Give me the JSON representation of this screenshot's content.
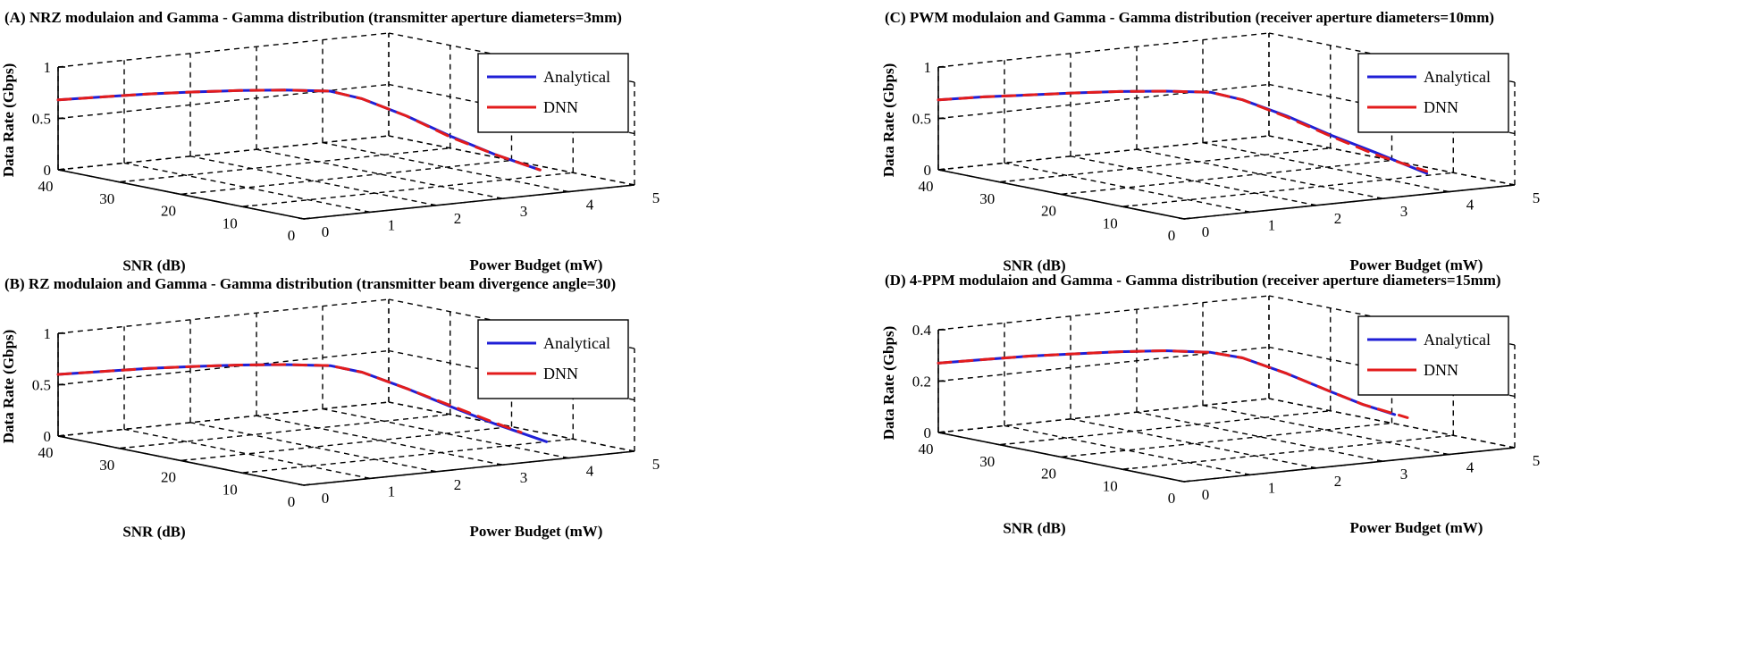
{
  "colors": {
    "analytical": "#1f1fd6",
    "dnn": "#e31c1c",
    "axes": "#000000"
  },
  "chart_data": [
    {
      "id": "A",
      "type": "line",
      "title": "(A) NRZ modulaion and Gamma - Gamma distribution (transmitter aperture diameters=3mm)",
      "xlabel": "Power Budget (mW)",
      "ylabel": "SNR (dB)",
      "zlabel": "Data Rate (Gbps)",
      "xlim": [
        0,
        5
      ],
      "ylim": [
        0,
        40
      ],
      "zlim": [
        0,
        1
      ],
      "xticks": [
        "0",
        "1",
        "2",
        "3",
        "4",
        "5"
      ],
      "yticks": [
        "0",
        "10",
        "20",
        "30",
        "40"
      ],
      "zticks": [
        "0",
        "0.5",
        "1"
      ],
      "grid": true,
      "legend": {
        "position": "top-right",
        "entries": [
          "Analytical",
          "DNN"
        ]
      },
      "series": [
        {
          "name": "Analytical",
          "points": [
            [
              0,
              40,
              0.68
            ],
            [
              0.5,
              38,
              0.7
            ],
            [
              1,
              36,
              0.72
            ],
            [
              1.5,
              34,
              0.73
            ],
            [
              2,
              32,
              0.735
            ],
            [
              2.5,
              30,
              0.73
            ],
            [
              3,
              28,
              0.71
            ],
            [
              3.3,
              26,
              0.64
            ],
            [
              3.6,
              22,
              0.5
            ],
            [
              3.9,
              18,
              0.33
            ],
            [
              4.2,
              14,
              0.18
            ],
            [
              4.5,
              10,
              0.06
            ]
          ]
        },
        {
          "name": "DNN",
          "points": [
            [
              0,
              40,
              0.68
            ],
            [
              0.5,
              38,
              0.7
            ],
            [
              1,
              36,
              0.72
            ],
            [
              1.5,
              34,
              0.73
            ],
            [
              2,
              32,
              0.735
            ],
            [
              2.5,
              30,
              0.73
            ],
            [
              3,
              28,
              0.71
            ],
            [
              3.3,
              26,
              0.64
            ],
            [
              3.6,
              22,
              0.5
            ],
            [
              3.9,
              18,
              0.32
            ],
            [
              4.2,
              14,
              0.18
            ],
            [
              4.5,
              10,
              0.06
            ]
          ]
        }
      ]
    },
    {
      "id": "B",
      "type": "line",
      "title": "(B) RZ modulaion and Gamma - Gamma distribution (transmitter beam divergence angle=30)",
      "xlabel": "Power Budget (mW)",
      "ylabel": "SNR (dB)",
      "zlabel": "Data Rate (Gbps)",
      "xlim": [
        0,
        5
      ],
      "ylim": [
        0,
        40
      ],
      "zlim": [
        0,
        1
      ],
      "xticks": [
        "0",
        "1",
        "2",
        "3",
        "4",
        "5"
      ],
      "yticks": [
        "0",
        "10",
        "20",
        "30",
        "40"
      ],
      "zticks": [
        "0",
        "0.5",
        "1"
      ],
      "grid": true,
      "legend": {
        "position": "top-right",
        "entries": [
          "Analytical",
          "DNN"
        ]
      },
      "series": [
        {
          "name": "Analytical",
          "points": [
            [
              0,
              40,
              0.6
            ],
            [
              0.5,
              38,
              0.62
            ],
            [
              1,
              36,
              0.64
            ],
            [
              1.5,
              34,
              0.65
            ],
            [
              2,
              32,
              0.655
            ],
            [
              2.5,
              30,
              0.65
            ],
            [
              3,
              28,
              0.63
            ],
            [
              3.3,
              26,
              0.57
            ],
            [
              3.6,
              22,
              0.44
            ],
            [
              3.9,
              18,
              0.29
            ],
            [
              4.2,
              14,
              0.15
            ],
            [
              4.6,
              10,
              0.0
            ]
          ]
        },
        {
          "name": "DNN",
          "points": [
            [
              0,
              40,
              0.6
            ],
            [
              0.5,
              38,
              0.62
            ],
            [
              1,
              36,
              0.64
            ],
            [
              1.5,
              34,
              0.65
            ],
            [
              2,
              32,
              0.655
            ],
            [
              2.5,
              30,
              0.65
            ],
            [
              3,
              28,
              0.63
            ],
            [
              3.3,
              26,
              0.57
            ],
            [
              3.6,
              22,
              0.44
            ],
            [
              3.9,
              18,
              0.3
            ],
            [
              4.2,
              14,
              0.16
            ],
            [
              4.4,
              12,
              0.08
            ]
          ]
        }
      ]
    },
    {
      "id": "C",
      "type": "line",
      "title": "(C) PWM modulaion and Gamma - Gamma distribution (receiver aperture diameters=10mm)",
      "xlabel": "Power Budget (mW)",
      "ylabel": "SNR (dB)",
      "zlabel": "Data Rate (Gbps)",
      "xlim": [
        0,
        5
      ],
      "ylim": [
        0,
        40
      ],
      "zlim": [
        0,
        1
      ],
      "xticks": [
        "0",
        "1",
        "2",
        "3",
        "4",
        "5"
      ],
      "yticks": [
        "0",
        "10",
        "20",
        "30",
        "40"
      ],
      "zticks": [
        "0",
        "0.5",
        "1"
      ],
      "grid": true,
      "legend": {
        "position": "top-right",
        "entries": [
          "Analytical",
          "DNN"
        ]
      },
      "series": [
        {
          "name": "Analytical",
          "points": [
            [
              0,
              40,
              0.68
            ],
            [
              0.5,
              38,
              0.7
            ],
            [
              1,
              36,
              0.71
            ],
            [
              1.5,
              34,
              0.72
            ],
            [
              2,
              32,
              0.725
            ],
            [
              2.5,
              30,
              0.72
            ],
            [
              3,
              28,
              0.7
            ],
            [
              3.3,
              26,
              0.63
            ],
            [
              3.6,
              22,
              0.5
            ],
            [
              3.9,
              18,
              0.34
            ],
            [
              4.2,
              14,
              0.2
            ],
            [
              4.6,
              10,
              0.02
            ]
          ]
        },
        {
          "name": "DNN",
          "points": [
            [
              0,
              40,
              0.68
            ],
            [
              0.5,
              38,
              0.7
            ],
            [
              1,
              36,
              0.71
            ],
            [
              1.5,
              34,
              0.72
            ],
            [
              2,
              32,
              0.725
            ],
            [
              2.5,
              30,
              0.72
            ],
            [
              3,
              28,
              0.7
            ],
            [
              3.3,
              26,
              0.63
            ],
            [
              3.6,
              22,
              0.49
            ],
            [
              3.9,
              18,
              0.33
            ],
            [
              4.2,
              14,
              0.18
            ],
            [
              4.6,
              10,
              0.04
            ]
          ]
        }
      ]
    },
    {
      "id": "D",
      "type": "line",
      "title": "(D) 4-PPM modulaion and Gamma - Gamma distribution (receiver aperture diameters=15mm)",
      "xlabel": "Power Budget (mW)",
      "ylabel": "SNR (dB)",
      "zlabel": "Data Rate (Gbps)",
      "xlim": [
        0,
        5
      ],
      "ylim": [
        0,
        40
      ],
      "zlim": [
        0,
        0.4
      ],
      "xticks": [
        "0",
        "1",
        "2",
        "3",
        "4",
        "5"
      ],
      "yticks": [
        "0",
        "10",
        "20",
        "30",
        "40"
      ],
      "zticks": [
        "0",
        "0.2",
        "0.4"
      ],
      "grid": true,
      "legend": {
        "position": "top-right",
        "entries": [
          "Analytical",
          "DNN"
        ]
      },
      "series": [
        {
          "name": "Analytical",
          "points": [
            [
              0,
              40,
              0.27
            ],
            [
              0.5,
              38,
              0.28
            ],
            [
              1,
              36,
              0.29
            ],
            [
              1.5,
              34,
              0.295
            ],
            [
              2,
              32,
              0.3
            ],
            [
              2.5,
              30,
              0.3
            ],
            [
              3,
              28,
              0.29
            ],
            [
              3.3,
              26,
              0.27
            ],
            [
              3.6,
              22,
              0.22
            ],
            [
              3.9,
              18,
              0.16
            ],
            [
              4.1,
              15,
              0.12
            ],
            [
              4.3,
              12,
              0.09
            ]
          ]
        },
        {
          "name": "DNN",
          "points": [
            [
              0,
              40,
              0.27
            ],
            [
              0.5,
              38,
              0.28
            ],
            [
              1,
              36,
              0.29
            ],
            [
              1.5,
              34,
              0.295
            ],
            [
              2,
              32,
              0.3
            ],
            [
              2.5,
              30,
              0.3
            ],
            [
              3,
              28,
              0.29
            ],
            [
              3.3,
              26,
              0.27
            ],
            [
              3.6,
              22,
              0.22
            ],
            [
              3.9,
              18,
              0.16
            ],
            [
              4.1,
              15,
              0.12
            ],
            [
              4.4,
              11,
              0.08
            ]
          ]
        }
      ]
    }
  ]
}
